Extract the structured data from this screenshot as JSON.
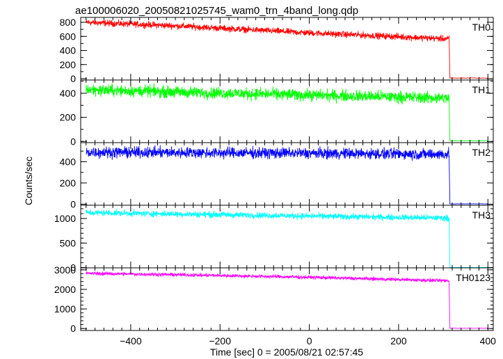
{
  "title": "ae100006020_20050821025745_wam0_trn_4band_long.qdp",
  "ylabel": "Counts/sec",
  "xlabel": "Time [sec] 0 = 2005/08/21 02:57:45",
  "chart_data": {
    "type": "line",
    "title": "ae100006020_20050821025745_wam0_trn_4band_long.qdp",
    "xlabel": "Time [sec] 0 = 2005/08/21 02:57:45",
    "ylabel": "Counts/sec",
    "xlim": [
      -512,
      412
    ],
    "x_ticks": [
      -400,
      -200,
      0,
      200,
      400
    ],
    "x_tick_labels": [
      "−400",
      "−200",
      "0",
      "200",
      "400"
    ],
    "drop_time": 313,
    "grid": false,
    "panels": [
      {
        "name": "TH0",
        "color": "#ff0000",
        "ylim": [
          -20,
          870
        ],
        "y_ticks": [
          0,
          200,
          400,
          600,
          800
        ],
        "y_minor_step": 100,
        "y_tick_labels": [
          "0",
          "200",
          "400",
          "600",
          "800"
        ],
        "trend": [
          {
            "x": -500,
            "y": 800
          },
          {
            "x": -300,
            "y": 750
          },
          {
            "x": 0,
            "y": 650
          },
          {
            "x": 310,
            "y": 565
          }
        ],
        "noise": 28,
        "after_drop": 8
      },
      {
        "name": "TH1",
        "color": "#00ff00",
        "ylim": [
          -10,
          510
        ],
        "y_ticks": [
          0,
          200,
          400
        ],
        "y_minor_step": 100,
        "y_tick_labels": [
          "0",
          "200",
          "400"
        ],
        "trend": [
          {
            "x": -500,
            "y": 430
          },
          {
            "x": -300,
            "y": 410
          },
          {
            "x": 0,
            "y": 385
          },
          {
            "x": 310,
            "y": 360
          }
        ],
        "noise": 30,
        "after_drop": 5
      },
      {
        "name": "TH2",
        "color": "#0000ff",
        "ylim": [
          -10,
          580
        ],
        "y_ticks": [
          0,
          200,
          400
        ],
        "y_minor_step": 100,
        "y_tick_labels": [
          "0",
          "200",
          "400"
        ],
        "trend": [
          {
            "x": -500,
            "y": 490
          },
          {
            "x": 0,
            "y": 480
          },
          {
            "x": 310,
            "y": 470
          }
        ],
        "noise": 32,
        "after_drop": 3
      },
      {
        "name": "TH3",
        "color": "#00ffff",
        "ylim": [
          -5,
          1270
        ],
        "y_ticks": [
          0,
          500,
          1000
        ],
        "y_minor_step": 100,
        "y_tick_labels": [
          "0",
          "500",
          "1000"
        ],
        "trend": [
          {
            "x": -500,
            "y": 1120
          },
          {
            "x": 0,
            "y": 1050
          },
          {
            "x": 310,
            "y": 1010
          }
        ],
        "noise": 38,
        "after_drop": 3
      },
      {
        "name": "TH0123",
        "color": "#ff00ff",
        "ylim": [
          -100,
          3100
        ],
        "y_ticks": [
          0,
          1000,
          2000,
          3000
        ],
        "y_minor_step": 200,
        "y_tick_labels": [
          "0",
          "1000",
          "2000",
          "3000"
        ],
        "trend": [
          {
            "x": -500,
            "y": 2820
          },
          {
            "x": -300,
            "y": 2750
          },
          {
            "x": 0,
            "y": 2620
          },
          {
            "x": 310,
            "y": 2440
          }
        ],
        "noise": 55,
        "after_drop": 15
      }
    ]
  }
}
